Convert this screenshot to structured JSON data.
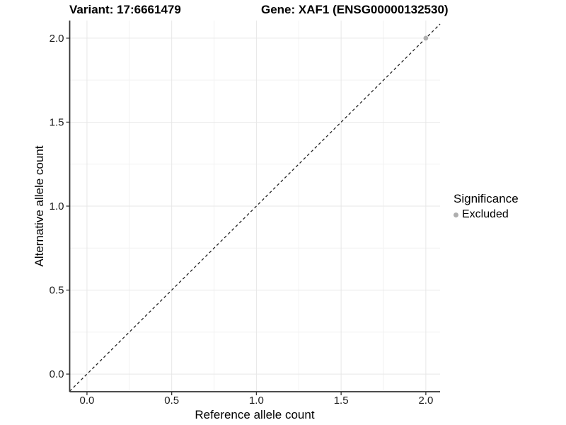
{
  "chart_data": {
    "type": "scatter",
    "titles": {
      "left": "Variant: 17:6661479",
      "right": "Gene: XAF1 (ENSG00000132530)"
    },
    "xlabel": "Reference allele count",
    "ylabel": "Alternative allele count",
    "xlim": [
      -0.102,
      2.084
    ],
    "ylim": [
      -0.105,
      2.105
    ],
    "xticks": {
      "values": [
        0,
        0.5,
        1,
        1.5,
        2
      ],
      "labels": [
        "0.0",
        "0.5",
        "1.0",
        "1.5",
        "2.0"
      ]
    },
    "yticks": {
      "values": [
        0,
        0.5,
        1,
        1.5,
        2
      ],
      "labels": [
        "0.0",
        "0.5",
        "1.0",
        "1.5",
        "2.0"
      ]
    },
    "minor_grid_step": 0.25,
    "grid": {
      "show": true,
      "major_color": "#e7e7e7",
      "minor_color": "#f2f2f2"
    },
    "axis_color": "#333333",
    "tick_label_color": "#1a1a1a",
    "reference_line": {
      "type": "identity",
      "style": "dashed",
      "color": "#222222"
    },
    "series": [
      {
        "name": "Excluded",
        "marker": "circle",
        "color": "#aeaeae",
        "points": [
          [
            2.0,
            2.0
          ]
        ]
      }
    ],
    "legend": {
      "title": "Significance",
      "position": "right",
      "items": [
        {
          "label": "Excluded",
          "color": "#aeaeae"
        }
      ]
    }
  }
}
